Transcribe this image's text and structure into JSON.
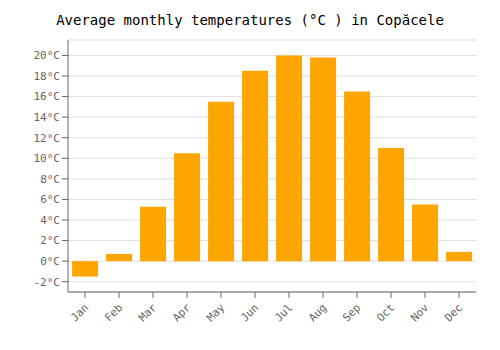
{
  "chart_data": {
    "type": "bar",
    "title": "Average monthly temperatures (°C ) in Copăcele",
    "categories": [
      "Jan",
      "Feb",
      "Mar",
      "Apr",
      "May",
      "Jun",
      "Jul",
      "Aug",
      "Sep",
      "Oct",
      "Nov",
      "Dec"
    ],
    "values": [
      -1.5,
      0.7,
      5.3,
      10.5,
      15.5,
      18.5,
      20.0,
      19.8,
      16.5,
      11.0,
      5.5,
      0.9
    ],
    "color": "#FFA500",
    "ylim": [
      -3,
      21.5
    ],
    "yticks": [
      {
        "value": -2,
        "label": "-2°C"
      },
      {
        "value": 0,
        "label": "0°C"
      },
      {
        "value": 2,
        "label": "2°C"
      },
      {
        "value": 4,
        "label": "4°C"
      },
      {
        "value": 6,
        "label": "6°C"
      },
      {
        "value": 8,
        "label": "8°C"
      },
      {
        "value": 10,
        "label": "10°C"
      },
      {
        "value": 12,
        "label": "12°C"
      },
      {
        "value": 14,
        "label": "14°C"
      },
      {
        "value": 16,
        "label": "16°C"
      },
      {
        "value": 18,
        "label": "18°C"
      },
      {
        "value": 20,
        "label": "20°C"
      }
    ],
    "grid": true
  }
}
